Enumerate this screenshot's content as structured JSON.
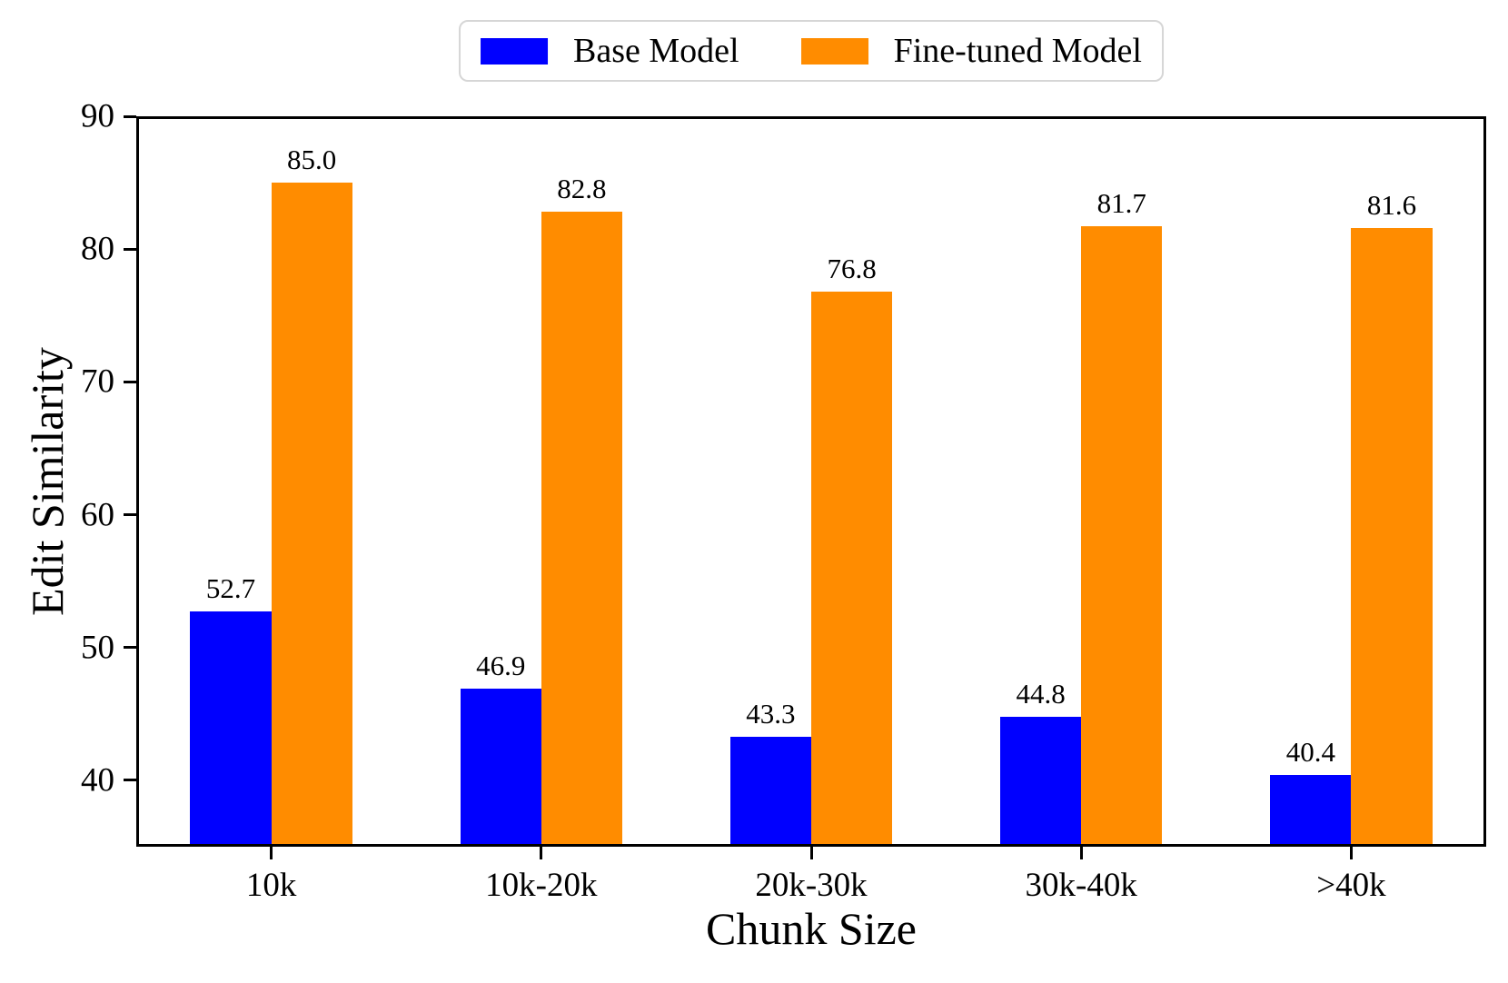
{
  "chart_data": {
    "type": "bar",
    "title": "",
    "xlabel": "Chunk Size",
    "ylabel": "Edit Similarity",
    "categories": [
      "10k",
      "10k-20k",
      "20k-30k",
      "30k-40k",
      ">40k"
    ],
    "series": [
      {
        "name": "Base Model",
        "color": "#0000FF",
        "values": [
          52.7,
          46.9,
          43.3,
          44.8,
          40.4
        ]
      },
      {
        "name": "Fine-tuned Model",
        "color": "#FF8C00",
        "values": [
          85.0,
          82.8,
          76.8,
          81.7,
          81.6
        ]
      }
    ],
    "ylim": [
      35,
      90
    ],
    "yticks": [
      40,
      50,
      60,
      70,
      80,
      90
    ],
    "value_labels_decimals": 1,
    "legend_position": "upper center",
    "grid": false,
    "bar_group_fraction": 0.6
  },
  "colors": {
    "axis": "#000000",
    "text": "#000000",
    "legend_border": "#d6d6d6",
    "background": "#ffffff"
  }
}
